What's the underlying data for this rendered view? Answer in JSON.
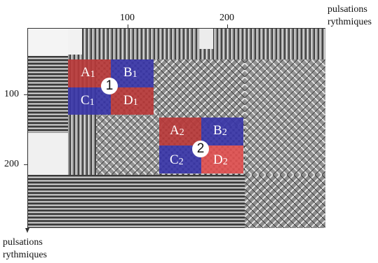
{
  "axes": {
    "x_title_line1": "pulsations",
    "x_title_line2": "rythmiques",
    "y_title_line1": "pulsations",
    "y_title_line2": "rythmiques",
    "x_ticks": [
      "100",
      "200"
    ],
    "y_ticks": [
      "100",
      "200"
    ]
  },
  "colors": {
    "red": "#b93a3a",
    "blue": "#3a36a8",
    "red_light": "#e05050"
  },
  "blocks": [
    {
      "marker": "1",
      "cells": [
        {
          "letter": "A",
          "index": "1",
          "color": "red"
        },
        {
          "letter": "B",
          "index": "1",
          "color": "blue"
        },
        {
          "letter": "C",
          "index": "1",
          "color": "blue"
        },
        {
          "letter": "D",
          "index": "1",
          "color": "red"
        }
      ]
    },
    {
      "marker": "2",
      "cells": [
        {
          "letter": "A",
          "index": "2",
          "color": "red"
        },
        {
          "letter": "B",
          "index": "2",
          "color": "blue"
        },
        {
          "letter": "C",
          "index": "2",
          "color": "blue"
        },
        {
          "letter": "D",
          "index": "2",
          "color": "red_light"
        }
      ]
    }
  ]
}
